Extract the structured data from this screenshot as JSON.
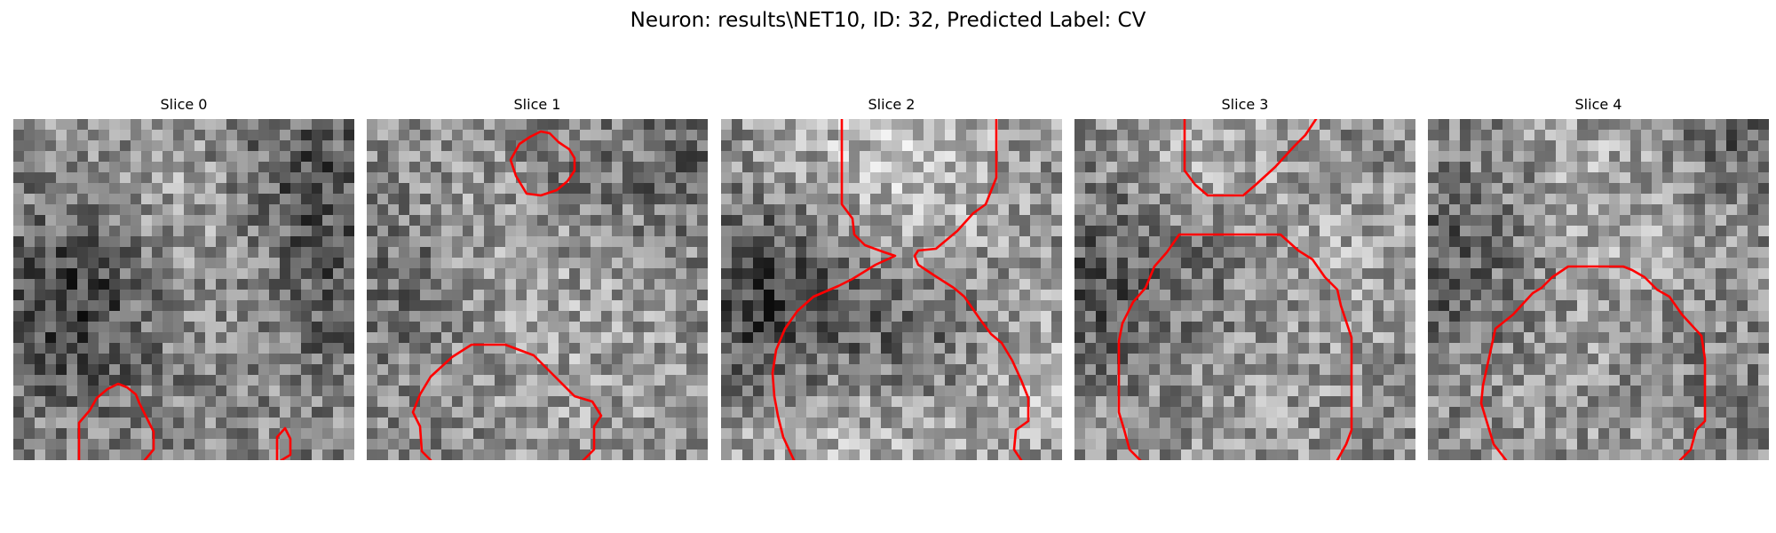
{
  "figure": {
    "title": "Neuron: results\\NET10, ID: 32, Predicted Label: CV",
    "slices": [
      {
        "title": "Slice 0"
      },
      {
        "title": "Slice 1"
      },
      {
        "title": "Slice 2"
      },
      {
        "title": "Slice 3"
      },
      {
        "title": "Slice 4"
      }
    ],
    "colors": {
      "contour": "#ff0000",
      "colormap": "gray"
    }
  }
}
